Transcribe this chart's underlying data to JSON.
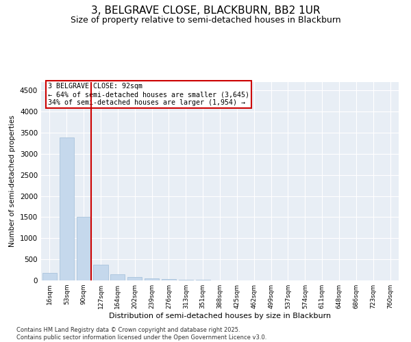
{
  "title": "3, BELGRAVE CLOSE, BLACKBURN, BB2 1UR",
  "subtitle": "Size of property relative to semi-detached houses in Blackburn",
  "xlabel": "Distribution of semi-detached houses by size in Blackburn",
  "ylabel": "Number of semi-detached properties",
  "footnote": "Contains HM Land Registry data © Crown copyright and database right 2025.\nContains public sector information licensed under the Open Government Licence v3.0.",
  "bar_categories": [
    "16sqm",
    "53sqm",
    "90sqm",
    "127sqm",
    "164sqm",
    "202sqm",
    "239sqm",
    "276sqm",
    "313sqm",
    "351sqm",
    "388sqm",
    "425sqm",
    "462sqm",
    "499sqm",
    "537sqm",
    "574sqm",
    "611sqm",
    "648sqm",
    "686sqm",
    "723sqm",
    "760sqm"
  ],
  "bar_values": [
    185,
    3380,
    1500,
    365,
    145,
    85,
    55,
    35,
    20,
    10,
    5,
    0,
    0,
    0,
    0,
    0,
    0,
    0,
    0,
    0,
    0
  ],
  "bar_color": "#c5d8ec",
  "bar_edgecolor": "#a0bdd8",
  "vline_index": 2,
  "vline_color": "#cc0000",
  "annotation_title": "3 BELGRAVE CLOSE: 92sqm",
  "annotation_line1": "← 64% of semi-detached houses are smaller (3,645)",
  "annotation_line2": "34% of semi-detached houses are larger (1,954) →",
  "annotation_box_color": "#cc0000",
  "ylim": [
    0,
    4700
  ],
  "yticks": [
    0,
    500,
    1000,
    1500,
    2000,
    2500,
    3000,
    3500,
    4000,
    4500
  ],
  "plot_bg_color": "#e8eef5",
  "title_fontsize": 11,
  "subtitle_fontsize": 9
}
